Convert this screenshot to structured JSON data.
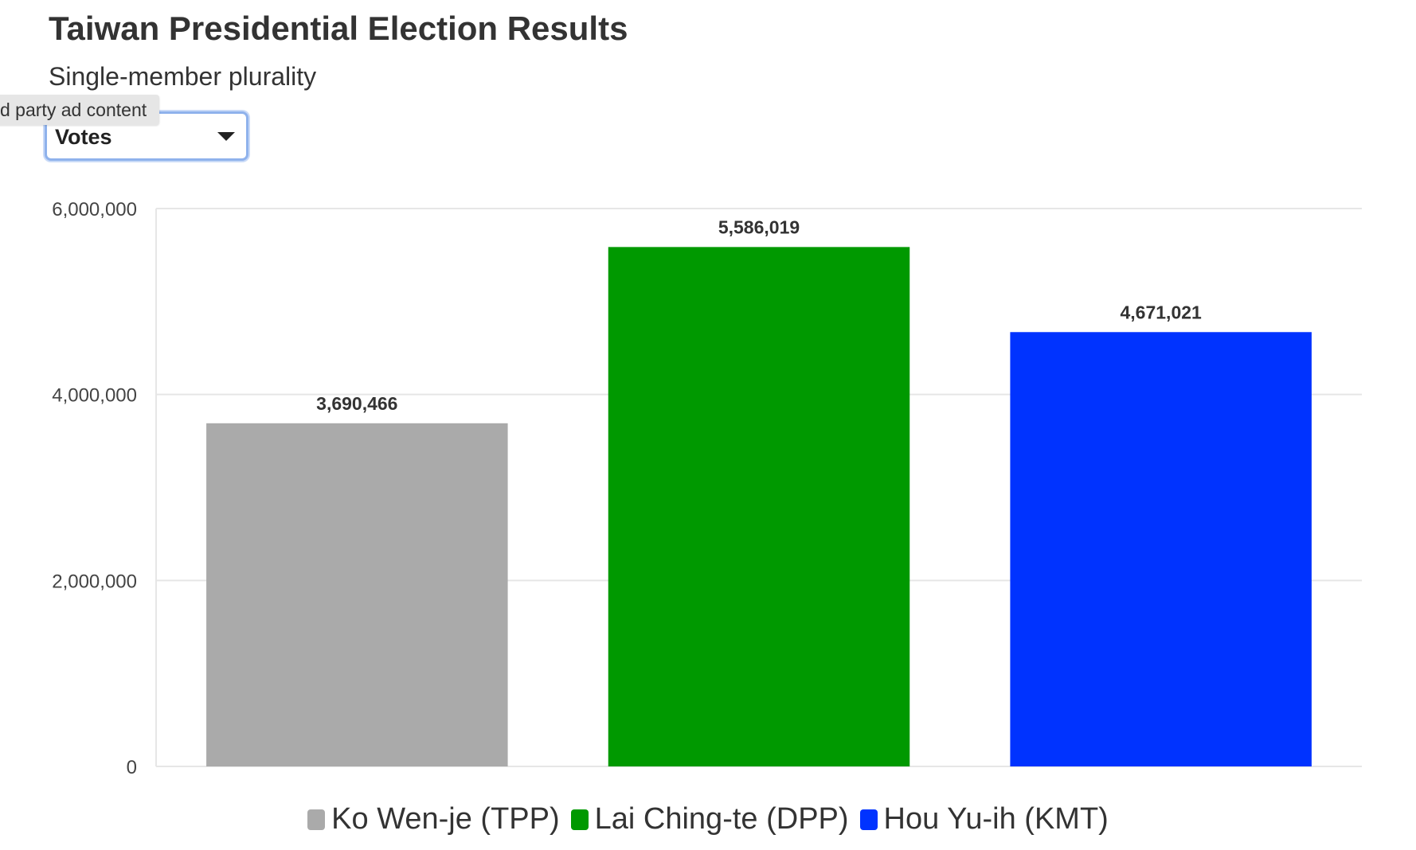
{
  "title": "Taiwan Presidential Election Results",
  "subtitle": "Single-member plurality",
  "tooltip": "d party ad content",
  "dropdown": {
    "selected": "Votes"
  },
  "chart_data": {
    "type": "bar",
    "categories": [
      "Ko Wen-je (TPP)",
      "Lai Ching-te (DPP)",
      "Hou Yu-ih (KMT)"
    ],
    "values": [
      3690466,
      5586019,
      4671021
    ],
    "value_labels": [
      "3,690,466",
      "5,586,019",
      "4,671,021"
    ],
    "colors": [
      "#aaaaaa",
      "#009900",
      "#0033ff"
    ],
    "ylim": [
      0,
      6000000
    ],
    "yticks": [
      0,
      2000000,
      4000000,
      6000000
    ],
    "ytick_labels": [
      "0",
      "2,000,000",
      "4,000,000",
      "6,000,000"
    ],
    "grid": true,
    "legend_position": "bottom-center"
  },
  "legend": {
    "items": [
      {
        "label": "Ko Wen-je (TPP)",
        "color": "#aaaaaa"
      },
      {
        "label": "Lai Ching-te (DPP)",
        "color": "#009900"
      },
      {
        "label": "Hou Yu-ih (KMT)",
        "color": "#0033ff"
      }
    ]
  }
}
